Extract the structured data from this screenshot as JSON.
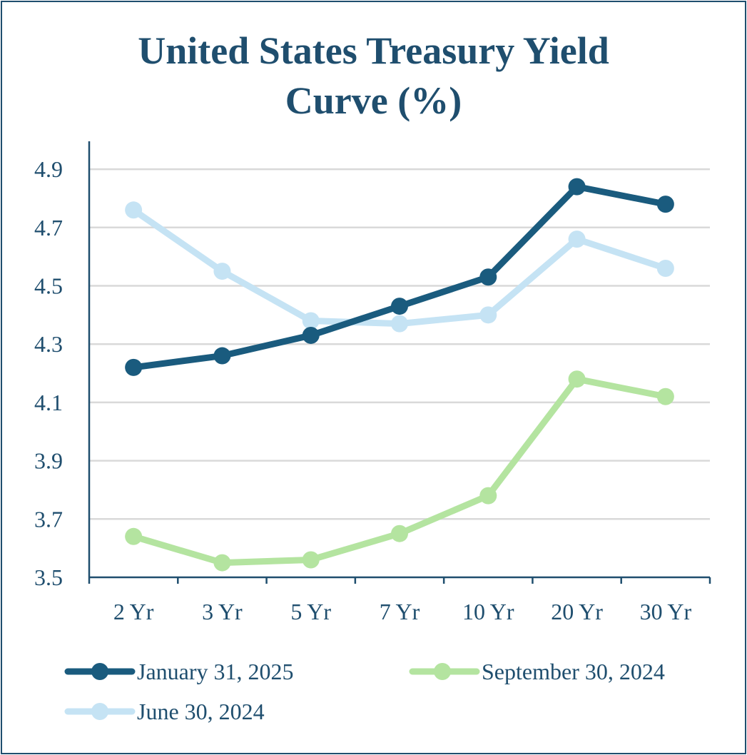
{
  "chart_data": {
    "type": "line",
    "title_line1": "United States Treasury Yield",
    "title_line2": "Curve (%)",
    "xlabel": "",
    "ylabel": "",
    "categories": [
      "2 Yr",
      "3 Yr",
      "5 Yr",
      "7 Yr",
      "10 Yr",
      "20 Yr",
      "30 Yr"
    ],
    "ylim": [
      3.5,
      5.0
    ],
    "yticks": [
      "3.5",
      "3.7",
      "3.9",
      "4.1",
      "4.3",
      "4.5",
      "4.7",
      "4.9"
    ],
    "grid": true,
    "legend_position": "bottom",
    "series": [
      {
        "name": "January 31, 2025",
        "color": "#1a5b7e",
        "values": [
          4.22,
          4.26,
          4.33,
          4.43,
          4.53,
          4.84,
          4.78
        ]
      },
      {
        "name": "September 30, 2024",
        "color": "#b4e4a0",
        "values": [
          3.64,
          3.55,
          3.56,
          3.65,
          3.78,
          4.18,
          4.12
        ]
      },
      {
        "name": "June 30, 2024",
        "color": "#c5e3f4",
        "values": [
          4.76,
          4.55,
          4.38,
          4.37,
          4.4,
          4.66,
          4.56
        ]
      }
    ]
  }
}
